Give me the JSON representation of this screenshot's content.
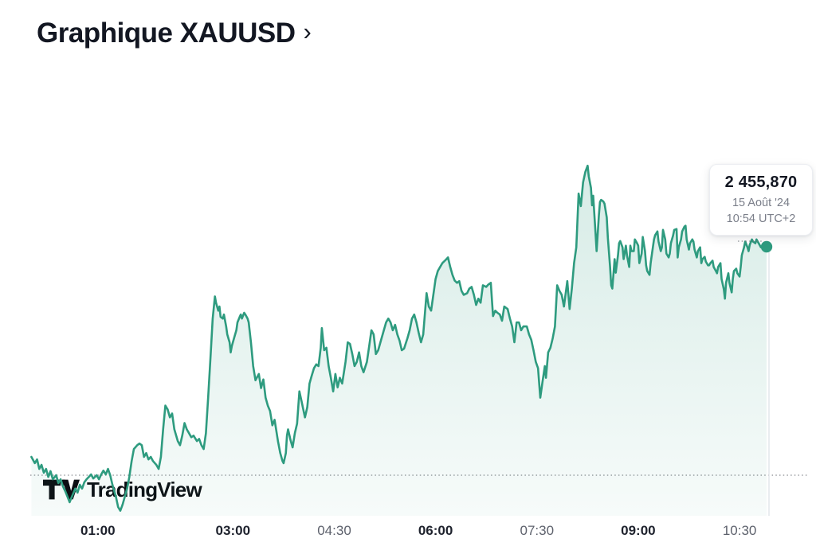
{
  "header": {
    "title": "Graphique XAUUSD",
    "chevron": "›"
  },
  "tooltip": {
    "price": "2 455,870",
    "date": "15 Août '24",
    "time": "10:54 UTC+2"
  },
  "logo": {
    "brand": "TradingView"
  },
  "colors": {
    "line": "#2e9b7f",
    "dot": "#2e9b7f",
    "title": "#131722",
    "tick_bold": "#1e222d",
    "tick_normal": "#5d616c",
    "price": "#131722",
    "muted": "#7a7e89",
    "baseline_dots": "#74787f",
    "edge_line": "#e2e5ea"
  },
  "chart_data": {
    "type": "area",
    "symbol": "XAUUSD",
    "title": "Graphique XAUUSD",
    "last_price": 2455.87,
    "last_price_label": "2 455,870",
    "last_timestamp": "15 Août '24 10:54 UTC+2",
    "baseline_price": 2447.5,
    "xlim_minutes": [
      0,
      654
    ],
    "ylim": [
      2446.1,
      2459.4
    ],
    "grid": "off",
    "legend": "none",
    "x_ticks": [
      {
        "t": 60,
        "label": "01:00",
        "bold": true
      },
      {
        "t": 180,
        "label": "03:00",
        "bold": true
      },
      {
        "t": 270,
        "label": "04:30",
        "bold": false
      },
      {
        "t": 360,
        "label": "06:00",
        "bold": true
      },
      {
        "t": 450,
        "label": "07:30",
        "bold": false
      },
      {
        "t": 540,
        "label": "09:00",
        "bold": true
      },
      {
        "t": 630,
        "label": "10:30",
        "bold": false
      }
    ],
    "series": [
      [
        1,
        2448.17
      ],
      [
        4,
        2447.94
      ],
      [
        6,
        2448.08
      ],
      [
        8,
        2447.73
      ],
      [
        10,
        2447.88
      ],
      [
        12,
        2447.59
      ],
      [
        14,
        2447.73
      ],
      [
        16,
        2447.44
      ],
      [
        18,
        2447.65
      ],
      [
        20,
        2447.35
      ],
      [
        23,
        2447.5
      ],
      [
        25,
        2447.21
      ],
      [
        27,
        2447.35
      ],
      [
        29,
        2447.09
      ],
      [
        31,
        2446.92
      ],
      [
        33,
        2446.72
      ],
      [
        35,
        2446.51
      ],
      [
        37,
        2446.72
      ],
      [
        40,
        2447.01
      ],
      [
        42,
        2446.86
      ],
      [
        44,
        2447.15
      ],
      [
        46,
        2447.01
      ],
      [
        48,
        2447.24
      ],
      [
        50,
        2447.35
      ],
      [
        52,
        2447.44
      ],
      [
        54,
        2447.53
      ],
      [
        56,
        2447.38
      ],
      [
        59,
        2447.5
      ],
      [
        61,
        2447.35
      ],
      [
        63,
        2447.53
      ],
      [
        65,
        2447.67
      ],
      [
        67,
        2447.53
      ],
      [
        69,
        2447.73
      ],
      [
        71,
        2447.5
      ],
      [
        73,
        2447.15
      ],
      [
        76,
        2446.72
      ],
      [
        78,
        2446.34
      ],
      [
        80,
        2446.2
      ],
      [
        82,
        2446.43
      ],
      [
        84,
        2446.72
      ],
      [
        86,
        2447.01
      ],
      [
        88,
        2447.44
      ],
      [
        90,
        2448.02
      ],
      [
        92,
        2448.46
      ],
      [
        95,
        2448.6
      ],
      [
        97,
        2448.66
      ],
      [
        99,
        2448.6
      ],
      [
        101,
        2448.17
      ],
      [
        103,
        2448.31
      ],
      [
        105,
        2448.08
      ],
      [
        107,
        2448.17
      ],
      [
        109,
        2448.02
      ],
      [
        112,
        2447.88
      ],
      [
        114,
        2447.73
      ],
      [
        116,
        2448.17
      ],
      [
        118,
        2449.18
      ],
      [
        120,
        2450.05
      ],
      [
        122,
        2449.91
      ],
      [
        124,
        2449.62
      ],
      [
        126,
        2449.76
      ],
      [
        128,
        2449.18
      ],
      [
        131,
        2448.75
      ],
      [
        133,
        2448.6
      ],
      [
        135,
        2448.95
      ],
      [
        137,
        2449.41
      ],
      [
        139,
        2449.18
      ],
      [
        141,
        2449.04
      ],
      [
        143,
        2448.89
      ],
      [
        145,
        2448.95
      ],
      [
        148,
        2448.75
      ],
      [
        150,
        2448.83
      ],
      [
        152,
        2448.6
      ],
      [
        154,
        2448.46
      ],
      [
        156,
        2449.04
      ],
      [
        158,
        2450.34
      ],
      [
        160,
        2451.79
      ],
      [
        162,
        2453.24
      ],
      [
        164,
        2454.05
      ],
      [
        165,
        2453.82
      ],
      [
        167,
        2453.53
      ],
      [
        168,
        2453.68
      ],
      [
        169,
        2453.3
      ],
      [
        171,
        2453.24
      ],
      [
        172,
        2453.39
      ],
      [
        174,
        2452.95
      ],
      [
        175,
        2452.66
      ],
      [
        177,
        2452.37
      ],
      [
        178,
        2452.0
      ],
      [
        179,
        2452.23
      ],
      [
        181,
        2452.52
      ],
      [
        183,
        2452.81
      ],
      [
        184,
        2453.1
      ],
      [
        186,
        2453.3
      ],
      [
        187,
        2453.39
      ],
      [
        188,
        2453.24
      ],
      [
        190,
        2453.45
      ],
      [
        191,
        2453.39
      ],
      [
        193,
        2453.24
      ],
      [
        194,
        2453.1
      ],
      [
        196,
        2452.37
      ],
      [
        198,
        2451.5
      ],
      [
        200,
        2450.98
      ],
      [
        203,
        2451.21
      ],
      [
        205,
        2450.69
      ],
      [
        207,
        2451.01
      ],
      [
        209,
        2450.34
      ],
      [
        211,
        2450.05
      ],
      [
        213,
        2449.85
      ],
      [
        215,
        2449.33
      ],
      [
        217,
        2449.53
      ],
      [
        220,
        2448.75
      ],
      [
        222,
        2448.31
      ],
      [
        224,
        2448.02
      ],
      [
        225,
        2447.94
      ],
      [
        227,
        2448.31
      ],
      [
        228,
        2448.95
      ],
      [
        229,
        2449.18
      ],
      [
        231,
        2448.81
      ],
      [
        233,
        2448.52
      ],
      [
        235,
        2449.04
      ],
      [
        237,
        2449.39
      ],
      [
        239,
        2450.57
      ],
      [
        241,
        2450.2
      ],
      [
        244,
        2449.62
      ],
      [
        246,
        2449.99
      ],
      [
        248,
        2450.86
      ],
      [
        250,
        2451.15
      ],
      [
        252,
        2451.42
      ],
      [
        254,
        2451.56
      ],
      [
        256,
        2451.5
      ],
      [
        258,
        2452.17
      ],
      [
        259,
        2452.89
      ],
      [
        261,
        2452.08
      ],
      [
        263,
        2452.17
      ],
      [
        265,
        2451.5
      ],
      [
        267,
        2451.07
      ],
      [
        269,
        2450.57
      ],
      [
        271,
        2451.21
      ],
      [
        273,
        2450.72
      ],
      [
        275,
        2451.07
      ],
      [
        277,
        2450.86
      ],
      [
        280,
        2451.65
      ],
      [
        282,
        2452.37
      ],
      [
        284,
        2452.31
      ],
      [
        286,
        2451.94
      ],
      [
        288,
        2451.5
      ],
      [
        290,
        2451.65
      ],
      [
        292,
        2452.0
      ],
      [
        294,
        2451.5
      ],
      [
        296,
        2451.27
      ],
      [
        299,
        2451.65
      ],
      [
        301,
        2452.23
      ],
      [
        303,
        2452.81
      ],
      [
        305,
        2452.66
      ],
      [
        307,
        2451.94
      ],
      [
        309,
        2452.08
      ],
      [
        311,
        2452.37
      ],
      [
        313,
        2452.66
      ],
      [
        316,
        2453.1
      ],
      [
        318,
        2453.24
      ],
      [
        320,
        2453.1
      ],
      [
        322,
        2452.81
      ],
      [
        324,
        2453.01
      ],
      [
        326,
        2452.66
      ],
      [
        328,
        2452.43
      ],
      [
        330,
        2452.08
      ],
      [
        332,
        2452.14
      ],
      [
        335,
        2452.52
      ],
      [
        337,
        2452.81
      ],
      [
        339,
        2453.24
      ],
      [
        341,
        2453.39
      ],
      [
        343,
        2453.1
      ],
      [
        345,
        2452.72
      ],
      [
        347,
        2452.37
      ],
      [
        349,
        2452.66
      ],
      [
        352,
        2454.17
      ],
      [
        354,
        2453.68
      ],
      [
        356,
        2453.53
      ],
      [
        358,
        2454.11
      ],
      [
        360,
        2454.69
      ],
      [
        362,
        2454.98
      ],
      [
        364,
        2455.13
      ],
      [
        366,
        2455.27
      ],
      [
        369,
        2455.39
      ],
      [
        371,
        2455.48
      ],
      [
        373,
        2455.13
      ],
      [
        375,
        2454.84
      ],
      [
        377,
        2454.63
      ],
      [
        379,
        2454.55
      ],
      [
        381,
        2454.61
      ],
      [
        383,
        2454.26
      ],
      [
        385,
        2454.11
      ],
      [
        388,
        2454.17
      ],
      [
        390,
        2454.34
      ],
      [
        392,
        2454.4
      ],
      [
        394,
        2454.11
      ],
      [
        396,
        2453.74
      ],
      [
        398,
        2453.97
      ],
      [
        400,
        2453.82
      ],
      [
        402,
        2454.46
      ],
      [
        405,
        2454.4
      ],
      [
        407,
        2454.49
      ],
      [
        409,
        2454.55
      ],
      [
        411,
        2453.33
      ],
      [
        413,
        2453.53
      ],
      [
        415,
        2453.45
      ],
      [
        417,
        2453.39
      ],
      [
        419,
        2453.16
      ],
      [
        421,
        2453.68
      ],
      [
        424,
        2453.59
      ],
      [
        426,
        2453.24
      ],
      [
        428,
        2452.95
      ],
      [
        430,
        2452.37
      ],
      [
        432,
        2453.1
      ],
      [
        434,
        2453.1
      ],
      [
        436,
        2452.81
      ],
      [
        438,
        2452.95
      ],
      [
        441,
        2452.95
      ],
      [
        443,
        2452.66
      ],
      [
        445,
        2452.46
      ],
      [
        447,
        2452.08
      ],
      [
        449,
        2451.65
      ],
      [
        451,
        2451.42
      ],
      [
        453,
        2450.34
      ],
      [
        455,
        2450.92
      ],
      [
        457,
        2451.5
      ],
      [
        458,
        2451.07
      ],
      [
        460,
        2452.0
      ],
      [
        462,
        2452.17
      ],
      [
        464,
        2452.52
      ],
      [
        466,
        2452.95
      ],
      [
        468,
        2454.46
      ],
      [
        470,
        2454.26
      ],
      [
        472,
        2454.11
      ],
      [
        474,
        2453.68
      ],
      [
        477,
        2454.61
      ],
      [
        479,
        2453.59
      ],
      [
        481,
        2454.34
      ],
      [
        483,
        2455.27
      ],
      [
        485,
        2455.85
      ],
      [
        487,
        2457.82
      ],
      [
        489,
        2457.36
      ],
      [
        491,
        2458.23
      ],
      [
        493,
        2458.61
      ],
      [
        495,
        2458.84
      ],
      [
        496,
        2458.46
      ],
      [
        498,
        2458.03
      ],
      [
        499,
        2457.39
      ],
      [
        500,
        2457.74
      ],
      [
        502,
        2456.43
      ],
      [
        503,
        2455.71
      ],
      [
        505,
        2457.01
      ],
      [
        506,
        2457.51
      ],
      [
        507,
        2457.59
      ],
      [
        509,
        2457.53
      ],
      [
        510,
        2457.45
      ],
      [
        512,
        2456.95
      ],
      [
        513,
        2456.2
      ],
      [
        515,
        2455.13
      ],
      [
        516,
        2454.46
      ],
      [
        517,
        2454.34
      ],
      [
        519,
        2455.42
      ],
      [
        520,
        2454.92
      ],
      [
        522,
        2455.56
      ],
      [
        523,
        2456.0
      ],
      [
        524,
        2456.08
      ],
      [
        526,
        2455.85
      ],
      [
        527,
        2455.42
      ],
      [
        529,
        2455.91
      ],
      [
        530,
        2455.56
      ],
      [
        532,
        2455.13
      ],
      [
        533,
        2455.91
      ],
      [
        534,
        2455.71
      ],
      [
        536,
        2455.71
      ],
      [
        537,
        2456.14
      ],
      [
        539,
        2456.0
      ],
      [
        540,
        2455.91
      ],
      [
        541,
        2455.27
      ],
      [
        543,
        2455.62
      ],
      [
        544,
        2456.23
      ],
      [
        546,
        2455.71
      ],
      [
        547,
        2455.19
      ],
      [
        548,
        2454.98
      ],
      [
        550,
        2454.84
      ],
      [
        551,
        2455.27
      ],
      [
        553,
        2455.85
      ],
      [
        554,
        2456.14
      ],
      [
        555,
        2456.29
      ],
      [
        557,
        2456.43
      ],
      [
        558,
        2456.06
      ],
      [
        560,
        2455.71
      ],
      [
        561,
        2455.85
      ],
      [
        562,
        2456.49
      ],
      [
        564,
        2456.14
      ],
      [
        565,
        2455.62
      ],
      [
        567,
        2455.48
      ],
      [
        568,
        2455.62
      ],
      [
        569,
        2456.0
      ],
      [
        571,
        2456.29
      ],
      [
        572,
        2456.49
      ],
      [
        574,
        2456.52
      ],
      [
        575,
        2455.48
      ],
      [
        576,
        2455.85
      ],
      [
        578,
        2456.14
      ],
      [
        579,
        2456.43
      ],
      [
        581,
        2456.61
      ],
      [
        582,
        2456.64
      ],
      [
        583,
        2456.14
      ],
      [
        585,
        2455.77
      ],
      [
        586,
        2456.0
      ],
      [
        588,
        2456.14
      ],
      [
        589,
        2456.06
      ],
      [
        590,
        2455.77
      ],
      [
        592,
        2455.48
      ],
      [
        593,
        2455.71
      ],
      [
        595,
        2455.85
      ],
      [
        596,
        2455.27
      ],
      [
        597,
        2455.42
      ],
      [
        599,
        2455.5
      ],
      [
        600,
        2455.33
      ],
      [
        602,
        2455.19
      ],
      [
        603,
        2455.19
      ],
      [
        604,
        2455.27
      ],
      [
        606,
        2455.36
      ],
      [
        607,
        2455.13
      ],
      [
        609,
        2454.98
      ],
      [
        610,
        2454.9
      ],
      [
        611,
        2455.13
      ],
      [
        613,
        2455.27
      ],
      [
        614,
        2454.69
      ],
      [
        616,
        2454.32
      ],
      [
        617,
        2453.97
      ],
      [
        618,
        2454.55
      ],
      [
        620,
        2454.9
      ],
      [
        621,
        2454.55
      ],
      [
        623,
        2454.2
      ],
      [
        624,
        2454.69
      ],
      [
        625,
        2454.98
      ],
      [
        627,
        2455.07
      ],
      [
        628,
        2454.9
      ],
      [
        630,
        2454.78
      ],
      [
        631,
        2455.13
      ],
      [
        632,
        2455.56
      ],
      [
        634,
        2455.85
      ],
      [
        635,
        2456.06
      ],
      [
        637,
        2455.85
      ],
      [
        638,
        2455.71
      ],
      [
        639,
        2455.94
      ],
      [
        641,
        2456.14
      ],
      [
        642,
        2456.06
      ],
      [
        644,
        2456.0
      ],
      [
        645,
        2456.14
      ],
      [
        647,
        2456.0
      ],
      [
        649,
        2455.85
      ],
      [
        654,
        2455.87
      ]
    ]
  }
}
